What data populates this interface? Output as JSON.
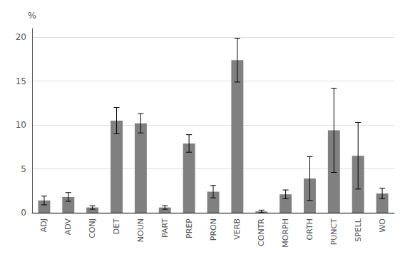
{
  "chart_data": {
    "type": "bar",
    "categories": [
      "ADJ",
      "ADV",
      "CONJ",
      "DET",
      "NOUN",
      "PART",
      "PREP",
      "PRON",
      "VERB",
      "CONTR",
      "MORPH",
      "ORTH",
      "PUNCT",
      "SPELL",
      "WO"
    ],
    "values": [
      1.4,
      1.8,
      0.6,
      10.5,
      10.2,
      0.6,
      7.9,
      2.4,
      17.4,
      0.15,
      2.1,
      3.9,
      9.4,
      6.5,
      2.2
    ],
    "errors": [
      0.5,
      0.5,
      0.2,
      1.5,
      1.1,
      0.2,
      1.0,
      0.7,
      2.5,
      0.15,
      0.5,
      2.5,
      4.8,
      3.8,
      0.6
    ],
    "color": "#808080",
    "ylabel": "%",
    "ylim": [
      0,
      21
    ],
    "yticks": [
      0,
      5,
      10,
      15,
      20
    ],
    "grid": true
  }
}
